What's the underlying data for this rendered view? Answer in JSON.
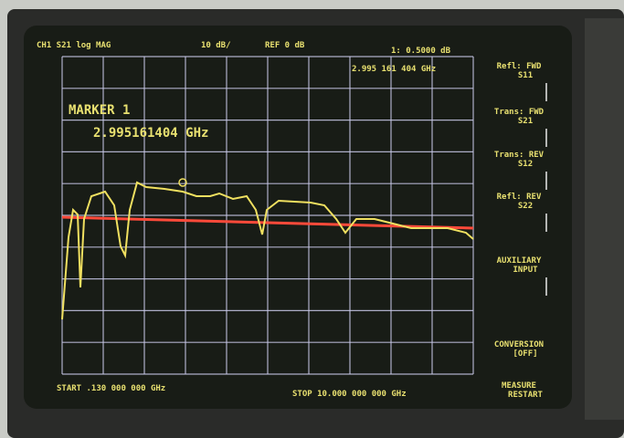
{
  "header": {
    "channel": "CH1 S21 log MAG",
    "scale": "10 dB/",
    "ref": "REF 0 dB",
    "readout": "1: 0.5000 dB",
    "readout_freq": "2.995 161 404 GHz"
  },
  "marker": {
    "label": "MARKER 1",
    "freq": "2.995161404 GHz"
  },
  "footer": {
    "start": "START .130 000 000 GHz",
    "stop": "STOP 10.000 000 000 GHz"
  },
  "softkeys": [
    {
      "line1": "Refl: FWD",
      "line2": "S11"
    },
    {
      "line1": "Trans: FWD",
      "line2": "S21"
    },
    {
      "line1": "Trans: REV",
      "line2": "S12"
    },
    {
      "line1": "Refl: REV",
      "line2": "S22"
    },
    {
      "line1": "AUXILIARY",
      "line2": "INPUT"
    },
    {
      "line1": "CONVERSION",
      "line2": "[OFF]"
    },
    {
      "line1": "MEASURE",
      "line2": "RESTART"
    }
  ]
}
